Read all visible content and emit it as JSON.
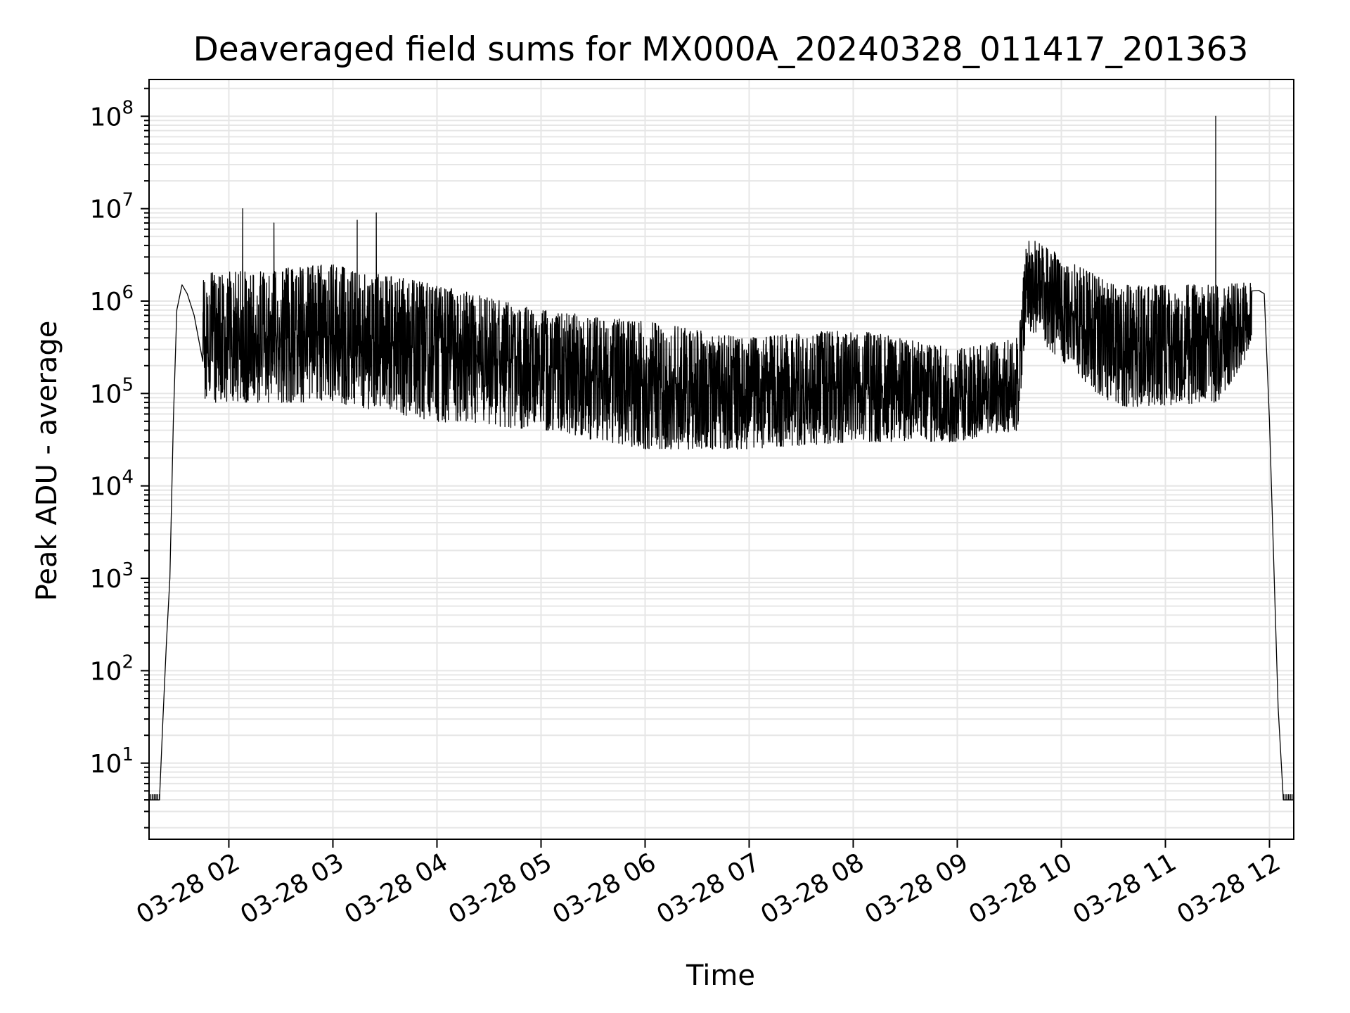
{
  "chart_data": {
    "type": "line",
    "title": "Deaveraged field sums for MX000A_20240328_011417_201363",
    "xlabel": "Time",
    "ylabel": "Peak ADU - average",
    "yscale": "log",
    "ylim": [
      1.5,
      250000000
    ],
    "xlim": [
      "2024-03-28T01:14",
      "2024-03-28T12:14"
    ],
    "grid": true,
    "line_color": "#000000",
    "grid_color": "#e6e6e6",
    "x_ticks": [
      "03-28 02",
      "03-28 03",
      "03-28 04",
      "03-28 05",
      "03-28 06",
      "03-28 07",
      "03-28 08",
      "03-28 09",
      "03-28 10",
      "03-28 11",
      "03-28 12"
    ],
    "y_ticks": [
      {
        "base": "10",
        "exp": "1"
      },
      {
        "base": "10",
        "exp": "2"
      },
      {
        "base": "10",
        "exp": "3"
      },
      {
        "base": "10",
        "exp": "4"
      },
      {
        "base": "10",
        "exp": "5"
      },
      {
        "base": "10",
        "exp": "6"
      },
      {
        "base": "10",
        "exp": "7"
      },
      {
        "base": "10",
        "exp": "8"
      }
    ],
    "x": [
      "01:14",
      "01:20",
      "01:22",
      "01:24",
      "01:26",
      "01:28",
      "01:30",
      "01:33",
      "01:36",
      "01:40",
      "01:45",
      "02:00",
      "02:30",
      "03:00",
      "03:30",
      "04:00",
      "04:30",
      "05:00",
      "05:30",
      "06:00",
      "06:30",
      "07:00",
      "07:30",
      "08:00",
      "08:30",
      "09:00",
      "09:30",
      "09:36",
      "09:40",
      "10:00",
      "10:30",
      "11:00",
      "11:30",
      "11:50",
      "11:54",
      "11:57",
      "12:00",
      "12:05",
      "12:08",
      "12:14"
    ],
    "y": [
      4,
      4,
      30,
      200,
      1000,
      50000,
      800000,
      1500000,
      1200000,
      700000,
      400000,
      300000,
      300000,
      500000,
      600000,
      600000,
      400000,
      250000,
      150000,
      100000,
      90000,
      70000,
      70000,
      80000,
      100000,
      60000,
      80000,
      100000,
      3000000,
      1000000,
      400000,
      300000,
      400000,
      600000,
      1300000,
      1200000,
      50000,
      40,
      4,
      4
    ],
    "spikes": [
      {
        "x": "02:08",
        "y": 10000000
      },
      {
        "x": "02:26",
        "y": 7000000
      },
      {
        "x": "03:14",
        "y": 7500000
      },
      {
        "x": "03:25",
        "y": 9000000
      },
      {
        "x": "11:29",
        "y": 100000000
      }
    ],
    "band_min": [
      {
        "x": "01:45",
        "y": 80000
      },
      {
        "x": "03:00",
        "y": 80000
      },
      {
        "x": "04:00",
        "y": 50000
      },
      {
        "x": "05:00",
        "y": 40000
      },
      {
        "x": "06:00",
        "y": 25000
      },
      {
        "x": "07:00",
        "y": 25000
      },
      {
        "x": "08:00",
        "y": 30000
      },
      {
        "x": "09:00",
        "y": 30000
      },
      {
        "x": "09:35",
        "y": 40000
      },
      {
        "x": "09:40",
        "y": 500000
      },
      {
        "x": "10:30",
        "y": 70000
      },
      {
        "x": "11:30",
        "y": 80000
      },
      {
        "x": "11:50",
        "y": 300000
      }
    ],
    "band_max": [
      {
        "x": "01:45",
        "y": 2000000
      },
      {
        "x": "03:00",
        "y": 2500000
      },
      {
        "x": "04:00",
        "y": 1500000
      },
      {
        "x": "05:00",
        "y": 800000
      },
      {
        "x": "06:00",
        "y": 600000
      },
      {
        "x": "07:00",
        "y": 400000
      },
      {
        "x": "08:00",
        "y": 500000
      },
      {
        "x": "09:00",
        "y": 300000
      },
      {
        "x": "09:35",
        "y": 400000
      },
      {
        "x": "09:40",
        "y": 5000000
      },
      {
        "x": "10:30",
        "y": 1500000
      },
      {
        "x": "11:30",
        "y": 1500000
      },
      {
        "x": "11:50",
        "y": 1600000
      }
    ]
  }
}
